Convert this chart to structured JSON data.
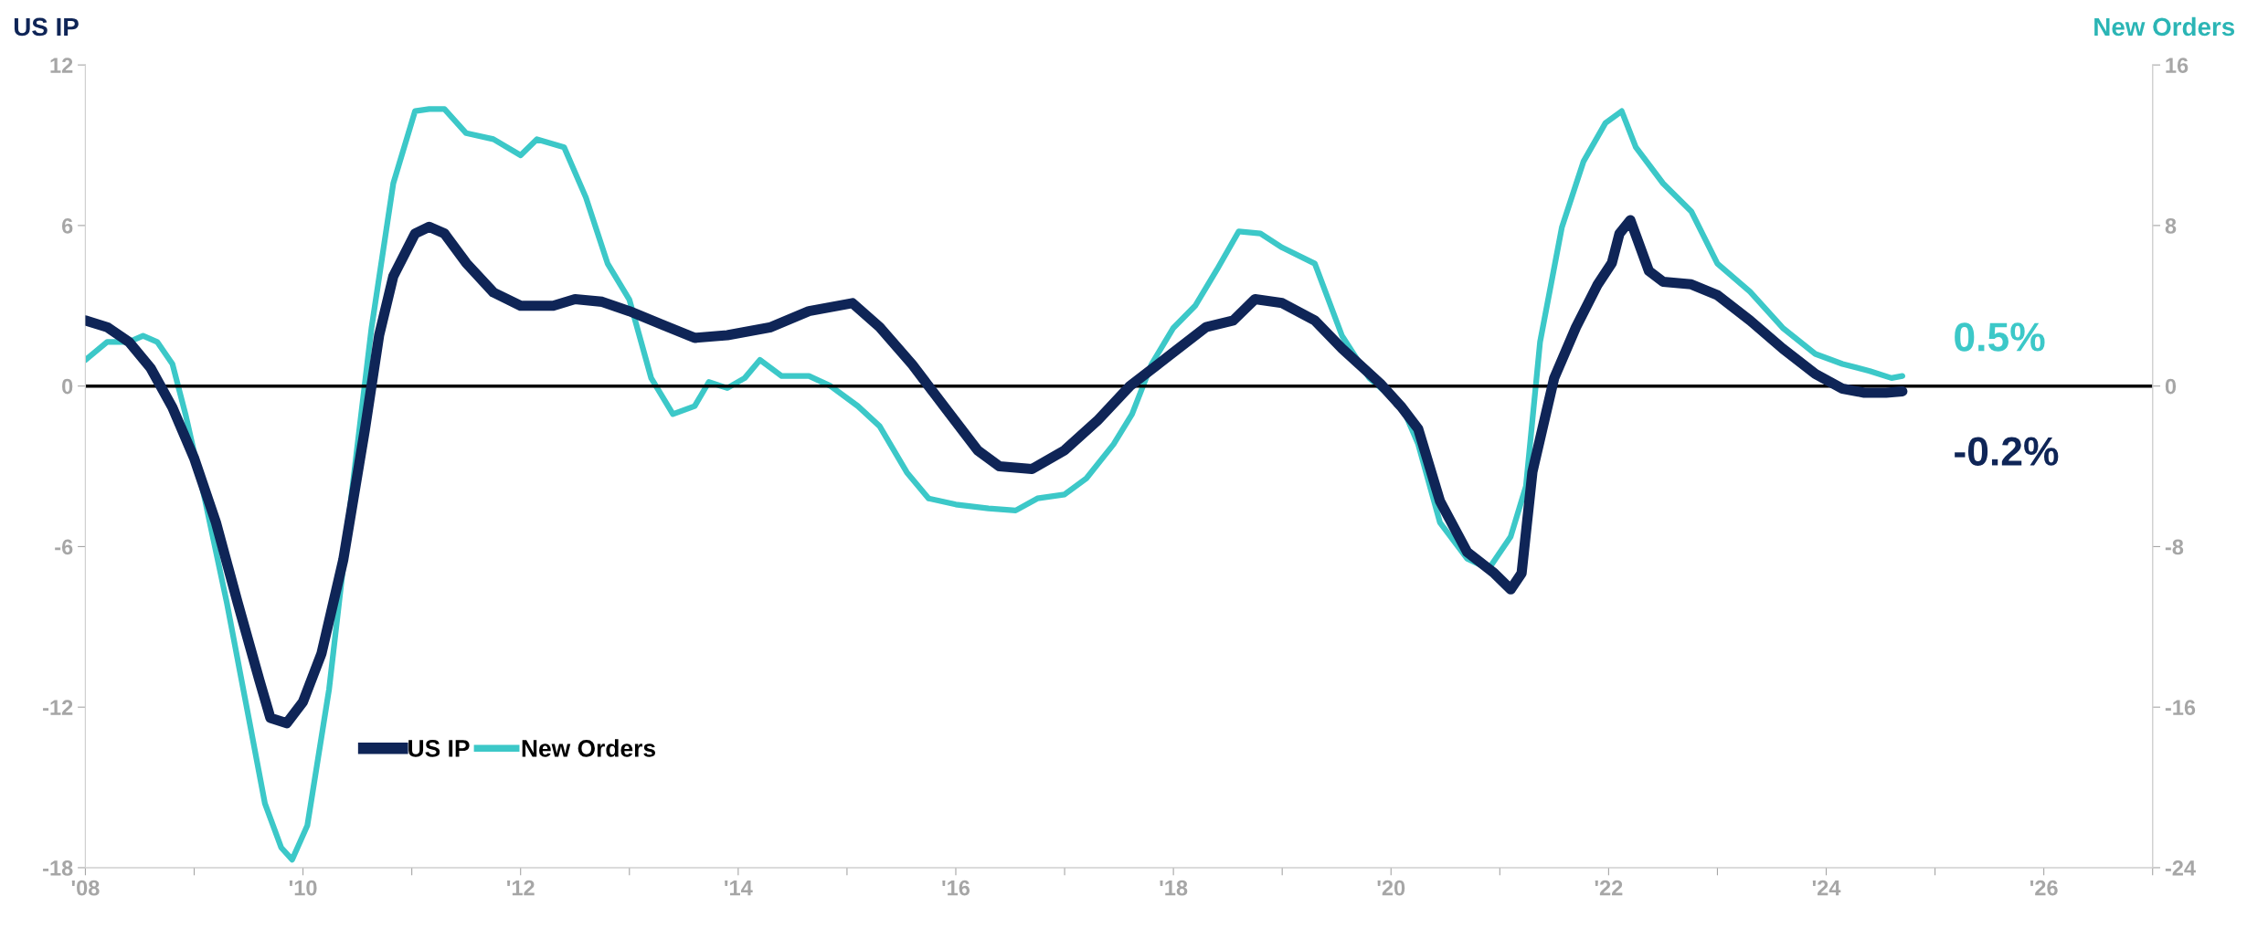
{
  "chart_data": {
    "type": "line",
    "ylabel": "US IP",
    "y2label": "New Orders",
    "xlim": [
      2008,
      2027
    ],
    "xticks": [
      {
        "value": 2008,
        "label": "'08"
      },
      {
        "value": 2009,
        "label": null
      },
      {
        "value": 2010,
        "label": "'10"
      },
      {
        "value": 2011,
        "label": null
      },
      {
        "value": 2012,
        "label": "'12"
      },
      {
        "value": 2013,
        "label": null
      },
      {
        "value": 2014,
        "label": "'14"
      },
      {
        "value": 2015,
        "label": null
      },
      {
        "value": 2016,
        "label": "'16"
      },
      {
        "value": 2017,
        "label": null
      },
      {
        "value": 2018,
        "label": "'18"
      },
      {
        "value": 2019,
        "label": null
      },
      {
        "value": 2020,
        "label": "'20"
      },
      {
        "value": 2021,
        "label": null
      },
      {
        "value": 2022,
        "label": "'22"
      },
      {
        "value": 2023,
        "label": null
      },
      {
        "value": 2024,
        "label": "'24"
      },
      {
        "value": 2025,
        "label": null
      },
      {
        "value": 2026,
        "label": "'26"
      },
      {
        "value": 2027,
        "label": null
      }
    ],
    "ylim": [
      -18,
      12
    ],
    "yticks": [
      -18,
      -12,
      -6,
      0,
      6,
      12
    ],
    "y2lim": [
      -24,
      16
    ],
    "y2ticks": [
      -24,
      -16,
      -8,
      0,
      8,
      16
    ],
    "grid": false,
    "legend": "bottom left",
    "line_style": "solid",
    "marker": "none",
    "ref_lines": [
      {
        "axis": "y",
        "value": 0,
        "color": "#000000"
      }
    ],
    "series": [
      {
        "name": "US IP",
        "color": "#0f2557",
        "axis": "y",
        "x": [
          2008.0,
          2008.2,
          2008.4,
          2008.6,
          2008.8,
          2009.0,
          2009.2,
          2009.4,
          2009.6,
          2009.7,
          2009.85,
          2010.0,
          2010.17,
          2010.37,
          2010.57,
          2010.7,
          2010.83,
          2011.03,
          2011.16,
          2011.3,
          2011.5,
          2011.75,
          2012.0,
          2012.3,
          2012.5,
          2012.75,
          2013.0,
          2013.3,
          2013.6,
          2013.9,
          2014.3,
          2014.65,
          2015.05,
          2015.3,
          2015.6,
          2015.9,
          2016.2,
          2016.4,
          2016.7,
          2017.0,
          2017.3,
          2017.6,
          2017.95,
          2018.3,
          2018.55,
          2018.75,
          2019.0,
          2019.3,
          2019.55,
          2019.9,
          2020.1,
          2020.25,
          2020.45,
          2020.7,
          2020.95,
          2021.1,
          2021.2,
          2021.3,
          2021.5,
          2021.7,
          2021.9,
          2022.03,
          2022.1,
          2022.2,
          2022.37,
          2022.5,
          2022.76,
          2023.0,
          2023.3,
          2023.6,
          2023.9,
          2024.15,
          2024.35,
          2024.55,
          2024.7
        ],
        "values": [
          2.45,
          2.2,
          1.65,
          0.67,
          -0.8,
          -2.7,
          -5.1,
          -8.1,
          -11.0,
          -12.4,
          -12.6,
          -11.8,
          -10.0,
          -6.5,
          -1.6,
          1.9,
          4.1,
          5.7,
          5.95,
          5.7,
          4.6,
          3.5,
          3.0,
          3.0,
          3.25,
          3.15,
          2.8,
          2.3,
          1.8,
          1.9,
          2.2,
          2.8,
          3.1,
          2.2,
          0.8,
          -0.8,
          -2.4,
          -3.0,
          -3.1,
          -2.4,
          -1.3,
          0.0,
          1.1,
          2.2,
          2.45,
          3.25,
          3.1,
          2.45,
          1.4,
          0.1,
          -0.8,
          -1.6,
          -4.3,
          -6.2,
          -7.0,
          -7.6,
          -7.0,
          -3.2,
          0.3,
          2.2,
          3.8,
          4.6,
          5.7,
          6.2,
          4.3,
          3.9,
          3.8,
          3.4,
          2.45,
          1.4,
          0.45,
          -0.1,
          -0.25,
          -0.25,
          -0.2
        ]
      },
      {
        "name": "New Orders",
        "color": "#3cc8c8",
        "axis": "y2",
        "x": [
          2008.0,
          2008.2,
          2008.4,
          2008.53,
          2008.66,
          2008.8,
          2008.92,
          2009.1,
          2009.3,
          2009.5,
          2009.65,
          2009.8,
          2009.9,
          2010.04,
          2010.24,
          2010.44,
          2010.63,
          2010.83,
          2011.03,
          2011.16,
          2011.3,
          2011.5,
          2011.75,
          2012.0,
          2012.15,
          2012.4,
          2012.6,
          2012.8,
          2013.0,
          2013.2,
          2013.4,
          2013.6,
          2013.73,
          2013.9,
          2014.06,
          2014.2,
          2014.4,
          2014.65,
          2014.85,
          2015.1,
          2015.3,
          2015.55,
          2015.75,
          2016.0,
          2016.3,
          2016.55,
          2016.75,
          2017.0,
          2017.2,
          2017.45,
          2017.62,
          2017.8,
          2018.0,
          2018.2,
          2018.4,
          2018.6,
          2018.8,
          2019.0,
          2019.3,
          2019.55,
          2019.8,
          2020.1,
          2020.25,
          2020.45,
          2020.7,
          2020.9,
          2021.1,
          2021.24,
          2021.37,
          2021.57,
          2021.77,
          2021.97,
          2022.12,
          2022.25,
          2022.5,
          2022.76,
          2023.0,
          2023.3,
          2023.6,
          2023.9,
          2024.15,
          2024.4,
          2024.6,
          2024.7
        ],
        "values": [
          1.3,
          2.2,
          2.2,
          2.5,
          2.2,
          1.1,
          -1.4,
          -5.7,
          -10.8,
          -16.5,
          -20.8,
          -23.0,
          -23.6,
          -21.9,
          -15.1,
          -5.7,
          2.9,
          10.1,
          13.7,
          13.8,
          13.8,
          12.6,
          12.3,
          11.5,
          12.3,
          11.9,
          9.4,
          6.1,
          4.3,
          0.4,
          -1.4,
          -1.0,
          0.2,
          -0.1,
          0.4,
          1.3,
          0.5,
          0.5,
          0.0,
          -1.0,
          -2.0,
          -4.3,
          -5.6,
          -5.9,
          -6.1,
          -6.2,
          -5.6,
          -5.4,
          -4.6,
          -2.9,
          -1.4,
          1.1,
          2.9,
          4.0,
          5.8,
          7.7,
          7.6,
          6.9,
          6.1,
          2.5,
          0.4,
          -1.0,
          -2.9,
          -6.8,
          -8.6,
          -9.1,
          -7.5,
          -5.0,
          2.2,
          7.9,
          11.2,
          13.1,
          13.7,
          11.9,
          10.1,
          8.7,
          6.1,
          4.7,
          2.9,
          1.6,
          1.1,
          0.75,
          0.4,
          0.5
        ]
      }
    ],
    "annotations": [
      {
        "text": "-0.2%",
        "x": 2024.7,
        "y": -0.2
      },
      {
        "text": "0.5%",
        "x": 2024.7,
        "y": 0.5
      }
    ]
  }
}
